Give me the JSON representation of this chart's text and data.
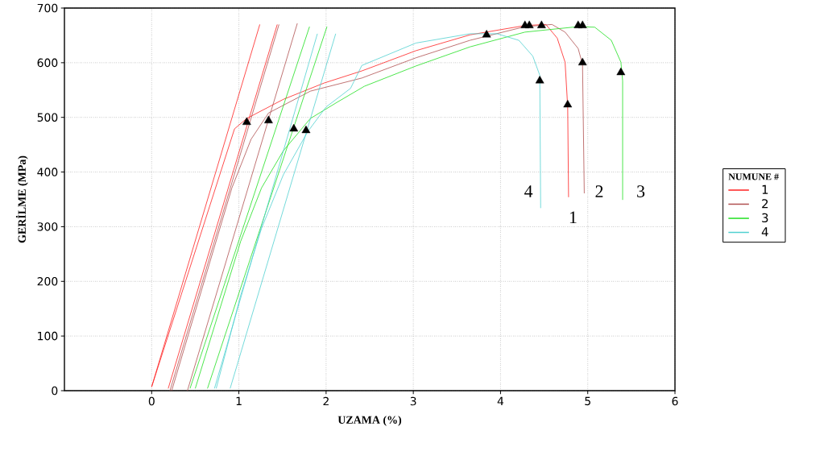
{
  "chart_data": {
    "type": "line",
    "xlabel": "UZAMA (%)",
    "ylabel": "GERİLME (MPa)",
    "legend_title": "NUMUNE  #",
    "xlim": [
      -1,
      6
    ],
    "ylim": [
      0,
      700
    ],
    "xticks": [
      0,
      1,
      2,
      3,
      4,
      5,
      6
    ],
    "yticks": [
      0,
      100,
      200,
      300,
      400,
      500,
      600,
      700
    ],
    "grid": true,
    "legend": "right",
    "series": [
      {
        "name": "1",
        "color": "#ff2020",
        "x": [
          0,
          0.95,
          1.09,
          1.51,
          1.98,
          2.41,
          3.03,
          3.65,
          4.28,
          4.52,
          4.65,
          4.74,
          4.77,
          4.78
        ],
        "values": [
          7,
          479,
          498,
          533,
          563,
          585,
          622,
          651,
          668,
          670,
          645,
          601,
          519,
          354
        ]
      },
      {
        "name": "2",
        "color": "#b05050",
        "x": [
          0.23,
          0.92,
          1.14,
          1.34,
          1.82,
          2.41,
          3.03,
          3.65,
          4.28,
          4.59,
          4.74,
          4.89,
          4.94,
          4.96
        ],
        "values": [
          0,
          371,
          460,
          508,
          548,
          572,
          609,
          641,
          666,
          670,
          656,
          626,
          597,
          361
        ]
      },
      {
        "name": "3",
        "color": "#20e020",
        "x": [
          0.5,
          1.02,
          1.26,
          1.51,
          1.82,
          2.13,
          2.28,
          2.44,
          3.03,
          3.65,
          4.28,
          4.89,
          5.08,
          5.27,
          5.38,
          5.4,
          5.4
        ],
        "values": [
          4,
          273,
          371,
          439,
          498,
          528,
          542,
          557,
          594,
          629,
          656,
          666,
          665,
          641,
          601,
          567,
          349
        ]
      },
      {
        "name": "4",
        "color": "#50d0d0",
        "x": [
          0.74,
          1.02,
          1.26,
          1.51,
          1.79,
          2.0,
          2.28,
          2.41,
          3.03,
          3.65,
          3.96,
          4.21,
          4.37,
          4.45,
          4.46
        ],
        "values": [
          4,
          174,
          297,
          395,
          474,
          519,
          553,
          595,
          636,
          653,
          653,
          641,
          612,
          577,
          334
        ]
      },
      {
        "color": "#ff2020",
        "x": [
          0,
          1.24
        ],
        "values": [
          7,
          670
        ]
      },
      {
        "color": "#ff2020",
        "x": [
          0.19,
          1.44
        ],
        "values": [
          4,
          670
        ]
      },
      {
        "color": "#b05050",
        "x": [
          0.21,
          1.46
        ],
        "values": [
          0,
          670
        ]
      },
      {
        "color": "#b05050",
        "x": [
          0.41,
          1.67
        ],
        "values": [
          0,
          672
        ]
      },
      {
        "color": "#20e020",
        "x": [
          0.44,
          1.81
        ],
        "values": [
          4,
          666
        ]
      },
      {
        "color": "#20e020",
        "x": [
          0.64,
          2.01
        ],
        "values": [
          4,
          666
        ]
      },
      {
        "color": "#50d0d0",
        "x": [
          0.72,
          1.9
        ],
        "values": [
          4,
          653
        ]
      },
      {
        "color": "#50d0d0",
        "x": [
          0.9,
          2.11
        ],
        "values": [
          4,
          653
        ]
      },
      {
        "type": "scatter",
        "marker": "triangle",
        "color": "#000000",
        "x": [
          1.09,
          1.34,
          1.63,
          1.77,
          3.84,
          4.28,
          4.33,
          4.47,
          4.89,
          4.94,
          4.45,
          4.77,
          4.94,
          5.38
        ],
        "values": [
          491,
          494,
          479,
          476,
          651,
          668,
          668,
          668,
          668,
          668,
          567,
          523,
          600,
          582
        ]
      }
    ],
    "annotations": [
      "4",
      "1",
      "2",
      "3"
    ]
  }
}
